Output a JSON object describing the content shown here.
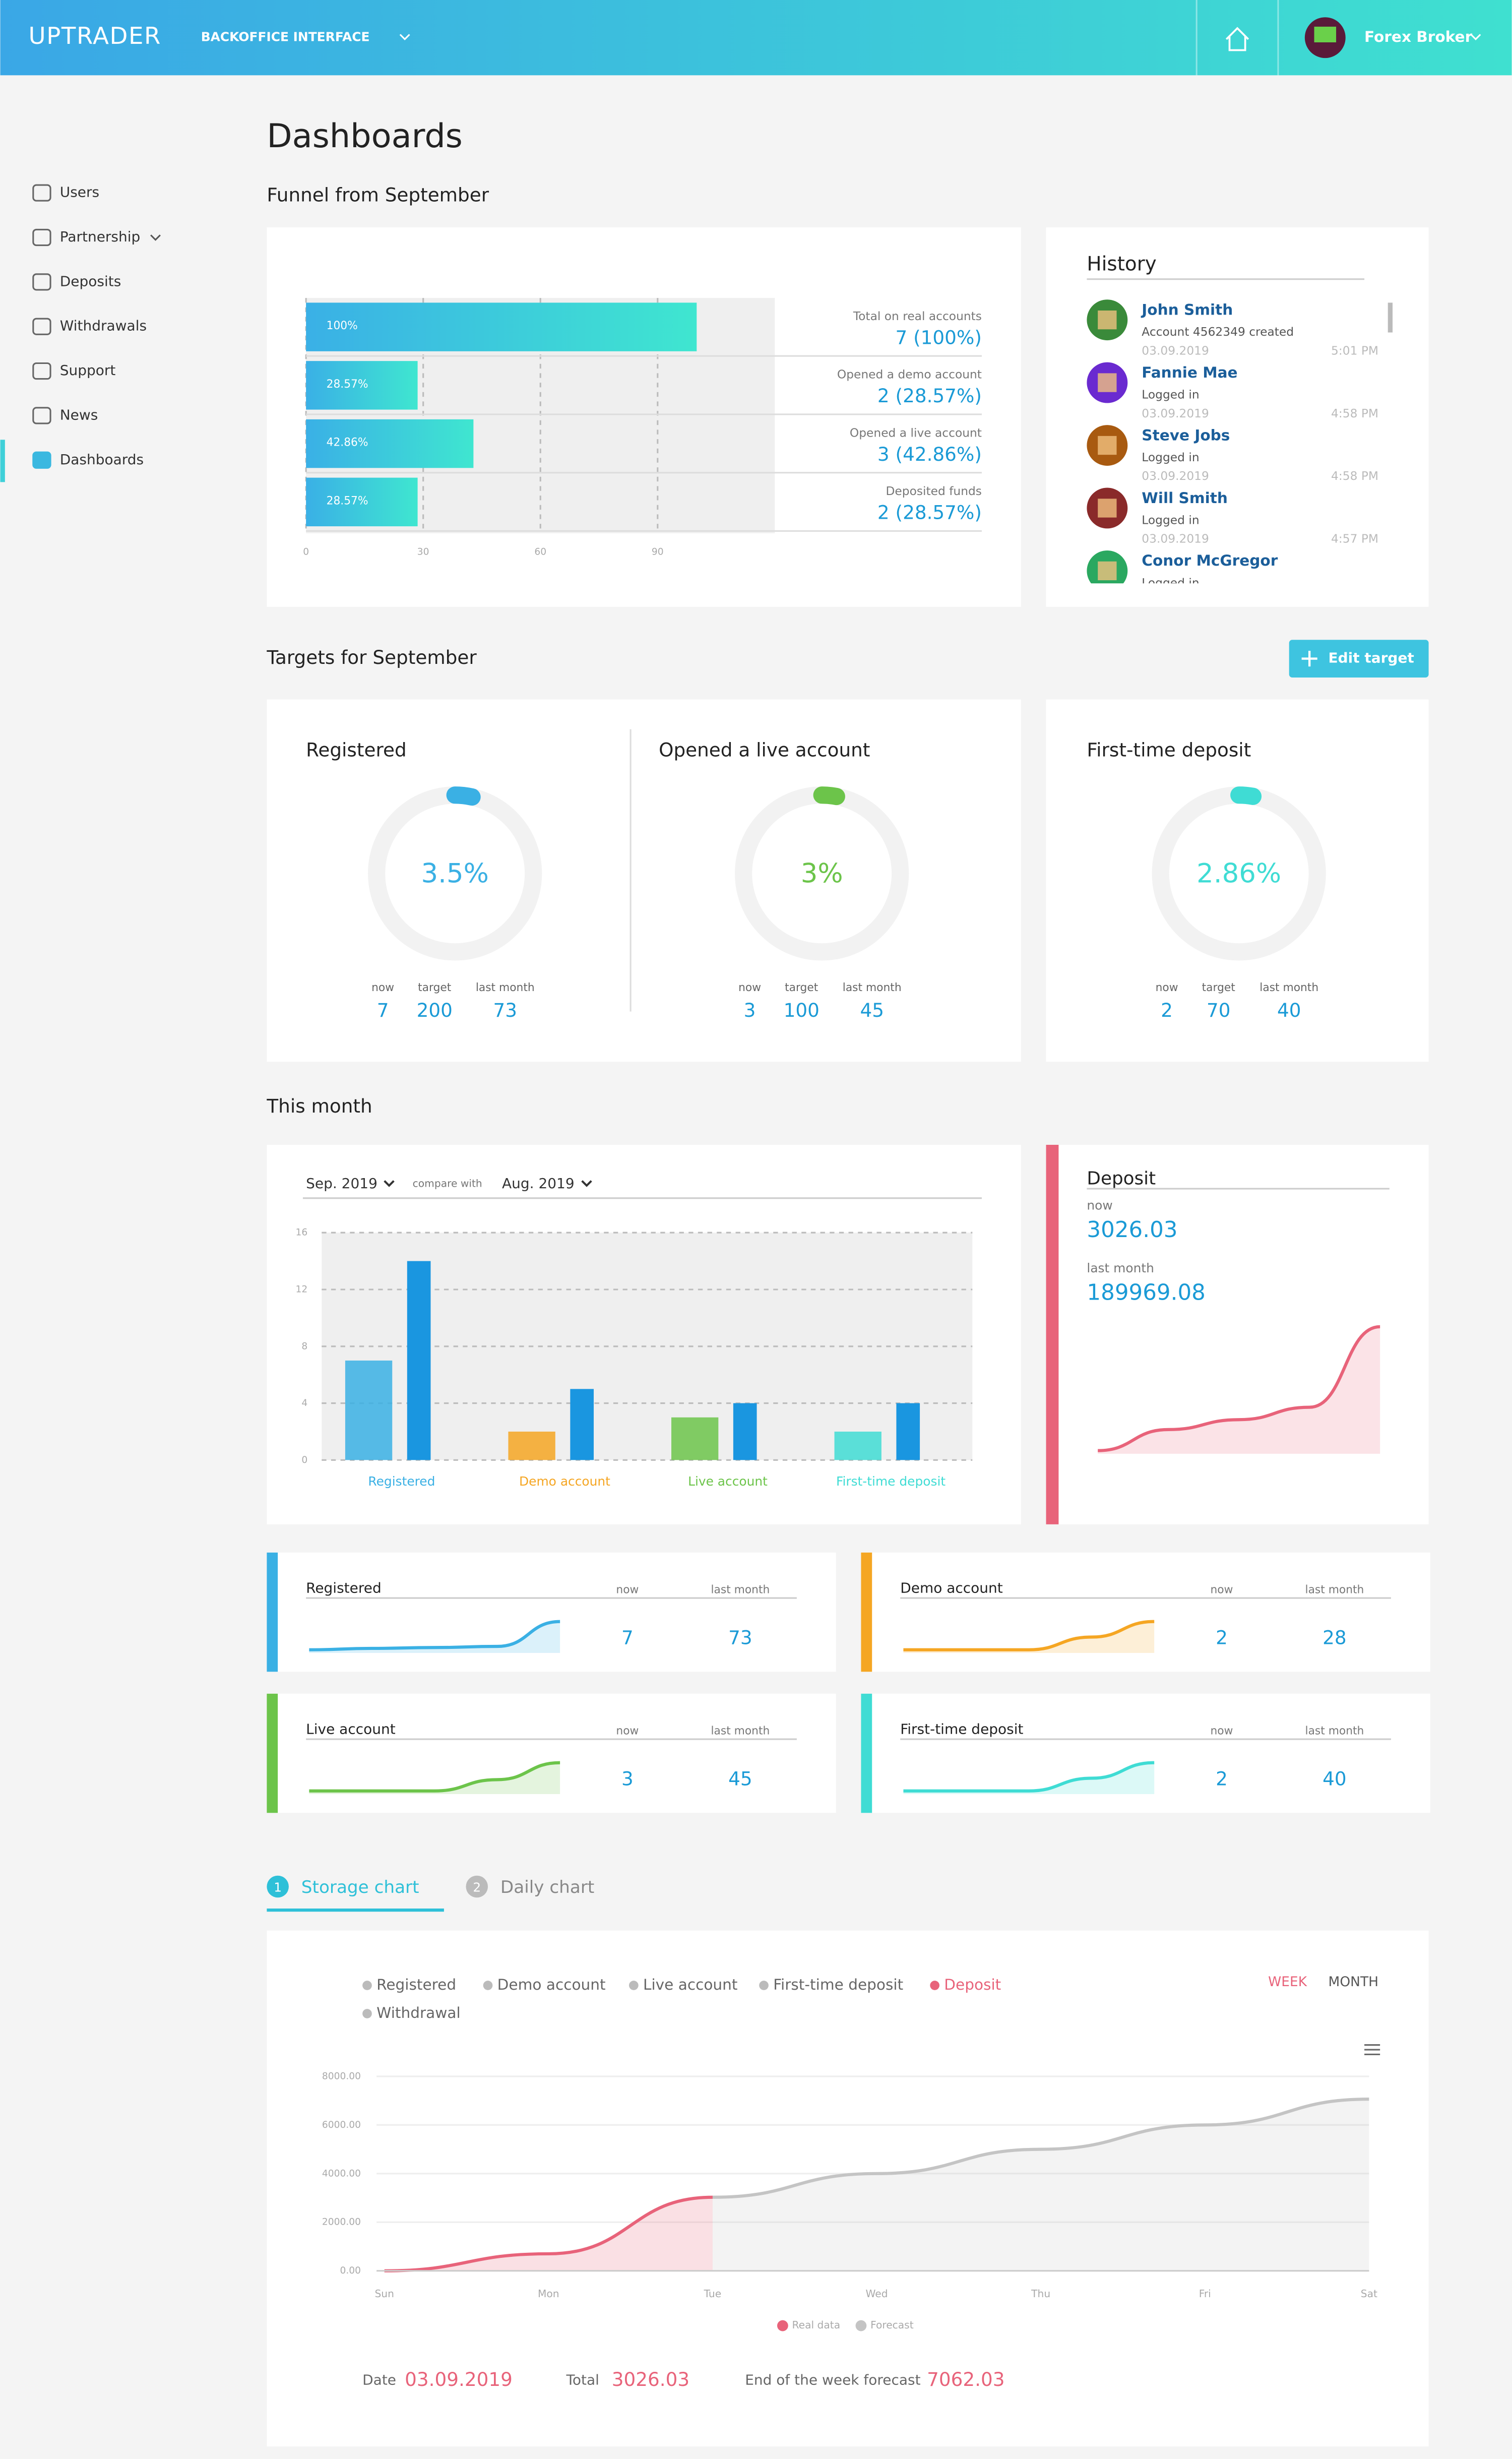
{
  "header": {
    "logo": "UPTRADER",
    "menu": "BACKOFFICE INTERFACE",
    "user": "Forex Broker"
  },
  "sidebar": [
    {
      "label": "Users"
    },
    {
      "label": "Partnership",
      "dropdown": true
    },
    {
      "label": "Deposits"
    },
    {
      "label": "Withdrawals"
    },
    {
      "label": "Support"
    },
    {
      "label": "News"
    },
    {
      "label": "Dashboards",
      "active": true
    }
  ],
  "page_title": "Dashboards",
  "funnel": {
    "title": "Funnel from September",
    "type": "bar",
    "orientation": "horizontal",
    "categories": [
      "Total on real accounts",
      "Opened a demo account",
      "Opened a live account",
      "Deposited funds"
    ],
    "values": [
      100,
      28.57,
      42.86,
      28.57
    ],
    "value_labels": [
      "100%",
      "28.57%",
      "42.86%",
      "28.57%"
    ],
    "totals": [
      "7 (100%)",
      "2 (28.57%)",
      "3 (42.86%)",
      "2 (28.57%)"
    ],
    "color": "#3ab5e6",
    "xlim": [
      0,
      120
    ],
    "xticks": [
      0,
      30,
      60,
      90
    ],
    "grid": true
  },
  "history": {
    "title": "History",
    "items": [
      {
        "name": "John Smith",
        "action": "Account 4562349 created",
        "date": "03.09.2019",
        "time": "5:01 PM",
        "avatar_color": "#3a8a3a"
      },
      {
        "name": "Fannie Mae",
        "action": "Logged in",
        "date": "03.09.2019",
        "time": "4:58 PM",
        "avatar_color": "#6a2ad0"
      },
      {
        "name": "Steve Jobs",
        "action": "Logged in",
        "date": "03.09.2019",
        "time": "4:58 PM",
        "avatar_color": "#a85a10"
      },
      {
        "name": "Will Smith",
        "action": "Logged in",
        "date": "03.09.2019",
        "time": "4:57 PM",
        "avatar_color": "#8a2a2a"
      },
      {
        "name": "Conor McGregor",
        "action": "Logged in",
        "avatar_color": "#2aa860"
      }
    ]
  },
  "targets": {
    "title": "Targets for September",
    "button": "Edit target",
    "stat_labels": [
      "now",
      "target",
      "last month"
    ],
    "items": [
      {
        "title": "Registered",
        "percent": 3.5,
        "percent_label": "3.5%",
        "now": 7,
        "target": 200,
        "last_month": 73,
        "color": "#3ab0e4"
      },
      {
        "title": "Opened a live account",
        "percent": 3,
        "percent_label": "3%",
        "now": 3,
        "target": 100,
        "last_month": 45,
        "color": "#6cc44a"
      },
      {
        "title": "First-time deposit",
        "percent": 2.86,
        "percent_label": "2.86%",
        "now": 2,
        "target": 70,
        "last_month": 40,
        "color": "#3fdcd4"
      }
    ]
  },
  "this_month": {
    "title": "This month",
    "compare_label": "compare with",
    "chart": {
      "type": "bar",
      "categories": [
        "Registered",
        "Demo account",
        "Live account",
        "First-time deposit"
      ],
      "category_colors": [
        "#3ab0e4",
        "#f5a623",
        "#6cc44a",
        "#3fdcd4"
      ],
      "series": [
        {
          "name": "Sep. 2019",
          "values": [
            7,
            2,
            3,
            2
          ]
        },
        {
          "name": "Aug. 2019",
          "color": "#1a96e0",
          "values": [
            14,
            5,
            4,
            4
          ]
        }
      ],
      "ylim": [
        0,
        16
      ],
      "yticks": [
        0,
        4,
        8,
        12,
        16
      ],
      "grid": true
    }
  },
  "deposit": {
    "title": "Deposit",
    "now_label": "now",
    "now": 3026.03,
    "last_month_label": "last month",
    "last_month": 189969.08,
    "color": "#e8637a",
    "trend": {
      "values": [
        0,
        17,
        25,
        35,
        100
      ],
      "ylim": [
        0,
        100
      ]
    }
  },
  "metrics": {
    "now_label": "now",
    "last_month_label": "last month",
    "trend_ylim": [
      0,
      100
    ],
    "items": [
      {
        "title": "Registered",
        "now": 7,
        "last_month": 73,
        "color": "#3ab0e4",
        "trend": [
          0,
          5,
          8,
          12,
          100
        ]
      },
      {
        "title": "Demo account",
        "now": 2,
        "last_month": 28,
        "color": "#f5a623",
        "trend": [
          0,
          0,
          0,
          45,
          100
        ]
      },
      {
        "title": "Live account",
        "now": 3,
        "last_month": 45,
        "color": "#6cc44a",
        "trend": [
          0,
          0,
          0,
          40,
          100
        ]
      },
      {
        "title": "First-time deposit",
        "now": 2,
        "last_month": 40,
        "color": "#3fdcd4",
        "trend": [
          0,
          0,
          0,
          45,
          100
        ]
      }
    ]
  },
  "tabs": [
    {
      "number": 1,
      "label": "Storage chart",
      "active": true
    },
    {
      "number": 2,
      "label": "Daily chart"
    }
  ],
  "storage_chart": {
    "type": "line",
    "legend": [
      {
        "label": "Registered"
      },
      {
        "label": "Demo account"
      },
      {
        "label": "Live account"
      },
      {
        "label": "First-time deposit"
      },
      {
        "label": "Deposit",
        "active": true
      },
      {
        "label": "Withdrawal"
      }
    ],
    "periods": [
      {
        "label": "WEEK",
        "active": true
      },
      {
        "label": "MONTH"
      }
    ],
    "categories": [
      "Sun",
      "Mon",
      "Tue",
      "Wed",
      "Thu",
      "Fri",
      "Sat"
    ],
    "series": [
      {
        "name": "Real data",
        "color": "#e8637a",
        "values": [
          0,
          700,
          3026.03,
          null,
          null,
          null,
          null
        ]
      },
      {
        "name": "Forecast",
        "color": "#c4c4c4",
        "values": [
          null,
          null,
          3026.03,
          4000,
          5000,
          6000,
          7062.03
        ]
      }
    ],
    "ylim": [
      0,
      8000
    ],
    "yticks": [
      {
        "value": 0,
        "label": "0.00"
      },
      {
        "value": 2000,
        "label": "2000.00"
      },
      {
        "value": 4000,
        "label": "4000.00"
      },
      {
        "value": 6000,
        "label": "6000.00"
      },
      {
        "value": 8000,
        "label": "8000.00"
      }
    ],
    "footer": {
      "date_label": "Date",
      "date": "03.09.2019",
      "total_label": "Total",
      "total": 3026.03,
      "forecast_label": "End of the week forecast",
      "forecast": 7062.03
    }
  }
}
